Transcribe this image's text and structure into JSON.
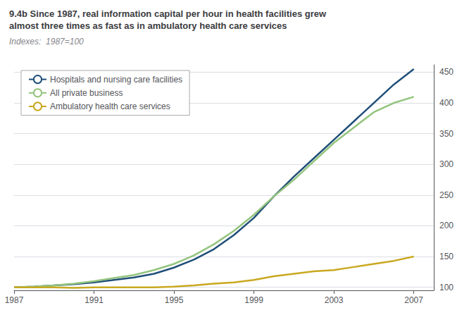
{
  "chart_data": {
    "type": "line",
    "title": "9.4b Since 1987, real information capital per hour in health facilities grew\nalmost three times as fast as in ambulatory health care services",
    "subtitle": "Indexes:  1987=100",
    "x": [
      1987,
      1988,
      1989,
      1990,
      1991,
      1992,
      1993,
      1994,
      1995,
      1996,
      1997,
      1998,
      1999,
      2000,
      2001,
      2002,
      2003,
      2004,
      2005,
      2006,
      2007
    ],
    "series": [
      {
        "name": "Hospitals and nursing care facilities",
        "color": "#1f4e79",
        "values": [
          100,
          101,
          103,
          105,
          108,
          112,
          116,
          122,
          132,
          145,
          162,
          185,
          213,
          248,
          280,
          310,
          340,
          370,
          400,
          430,
          455
        ]
      },
      {
        "name": "All private business",
        "color": "#93c47d",
        "values": [
          100,
          101,
          103,
          106,
          110,
          115,
          120,
          128,
          138,
          152,
          170,
          192,
          218,
          248,
          275,
          305,
          335,
          360,
          385,
          400,
          410
        ]
      },
      {
        "name": "Ambulatory health care services",
        "color": "#c9a820",
        "values": [
          100,
          100,
          100,
          99,
          100,
          100,
          100,
          100,
          101,
          103,
          106,
          108,
          112,
          118,
          122,
          126,
          128,
          133,
          138,
          143,
          150
        ]
      }
    ],
    "xlim": [
      1987,
      2008
    ],
    "xticks": [
      1987,
      1991,
      1995,
      1999,
      2003,
      2007
    ],
    "ylim": [
      95,
      462
    ],
    "yticks": [
      100,
      150,
      200,
      250,
      300,
      350,
      400,
      450
    ],
    "grid": true,
    "legend": "upper left"
  }
}
